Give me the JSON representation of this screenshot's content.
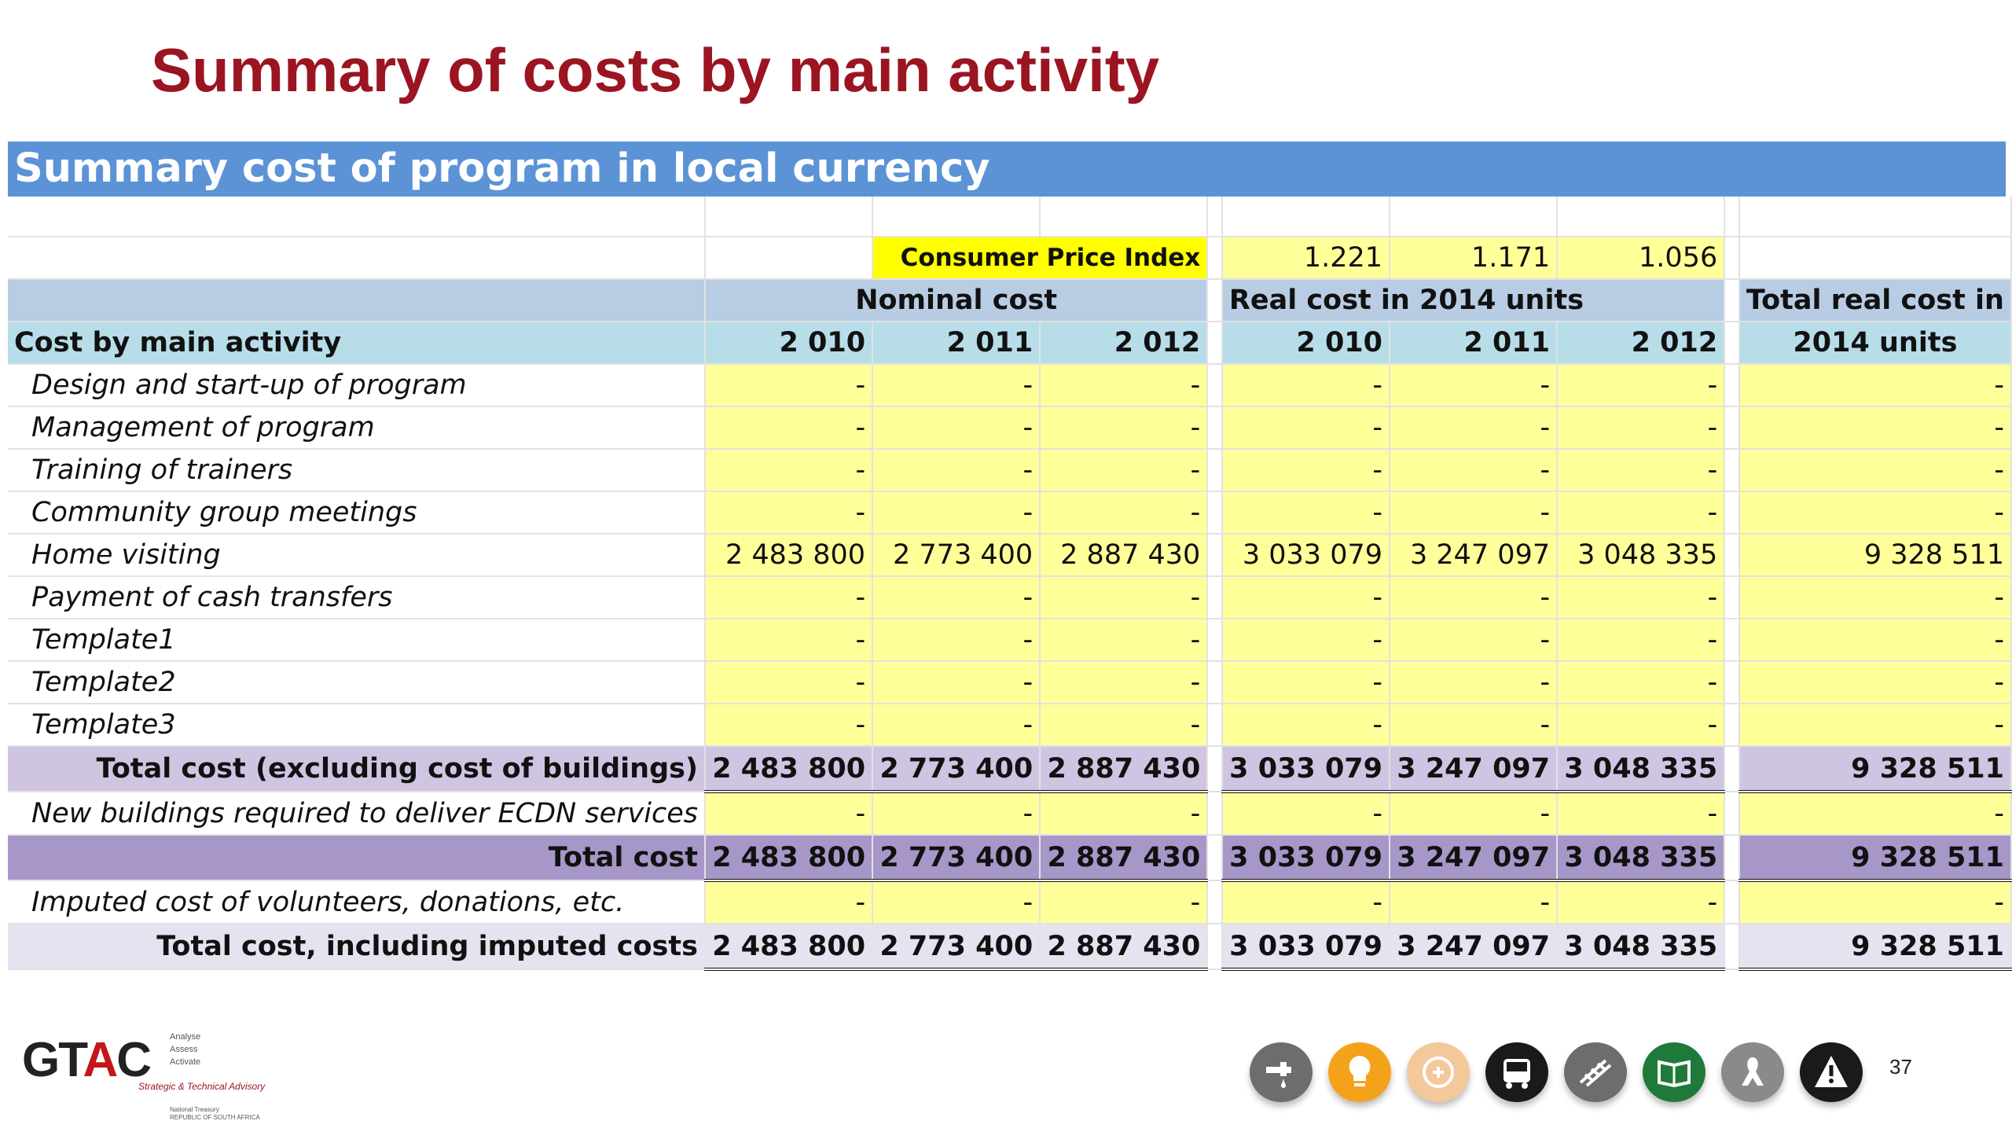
{
  "slide": {
    "title": "Summary of costs by main activity",
    "banner": "Summary cost of program in local currency",
    "page_number": "37"
  },
  "table": {
    "cpi_label": "Consumer Price Index",
    "cpi_values": [
      "1.221",
      "1.171",
      "1.056"
    ],
    "group_nominal": "Nominal cost",
    "group_real": "Real cost in 2014 units",
    "group_total_line1": "Total real cost in",
    "group_total_line2": "2014 units",
    "row_header": "Cost by main activity",
    "years_nominal": [
      "2 010",
      "2 011",
      "2 012"
    ],
    "years_real": [
      "2 010",
      "2 011",
      "2 012"
    ],
    "activities": [
      {
        "label": "Design and start-up of program",
        "nominal": [
          "-",
          "-",
          "-"
        ],
        "real": [
          "-",
          "-",
          "-"
        ],
        "total": "-"
      },
      {
        "label": "Management of program",
        "nominal": [
          "-",
          "-",
          "-"
        ],
        "real": [
          "-",
          "-",
          "-"
        ],
        "total": "-"
      },
      {
        "label": "Training of trainers",
        "nominal": [
          "-",
          "-",
          "-"
        ],
        "real": [
          "-",
          "-",
          "-"
        ],
        "total": "-"
      },
      {
        "label": "Community group meetings",
        "nominal": [
          "-",
          "-",
          "-"
        ],
        "real": [
          "-",
          "-",
          "-"
        ],
        "total": "-"
      },
      {
        "label": "Home visiting",
        "nominal": [
          "2 483 800",
          "2 773 400",
          "2 887 430"
        ],
        "real": [
          "3 033 079",
          "3 247 097",
          "3 048 335"
        ],
        "total": "9 328 511"
      },
      {
        "label": "Payment of cash transfers",
        "nominal": [
          "-",
          "-",
          "-"
        ],
        "real": [
          "-",
          "-",
          "-"
        ],
        "total": "-"
      },
      {
        "label": "Template1",
        "nominal": [
          "-",
          "-",
          "-"
        ],
        "real": [
          "-",
          "-",
          "-"
        ],
        "total": "-"
      },
      {
        "label": "Template2",
        "nominal": [
          "-",
          "-",
          "-"
        ],
        "real": [
          "-",
          "-",
          "-"
        ],
        "total": "-"
      },
      {
        "label": "Template3",
        "nominal": [
          "-",
          "-",
          "-"
        ],
        "real": [
          "-",
          "-",
          "-"
        ],
        "total": "-"
      }
    ],
    "total_excl": {
      "label": "Total cost (excluding cost of buildings)",
      "nominal": [
        "2 483 800",
        "2 773 400",
        "2 887 430"
      ],
      "real": [
        "3 033 079",
        "3 247 097",
        "3 048 335"
      ],
      "total": "9 328 511"
    },
    "buildings": {
      "label": "New buildings required to deliver ECDN services",
      "nominal": [
        "-",
        "-",
        "-"
      ],
      "real": [
        "-",
        "-",
        "-"
      ],
      "total": "-"
    },
    "total_cost": {
      "label": "Total cost",
      "nominal": [
        "2 483 800",
        "2 773 400",
        "2 887 430"
      ],
      "real": [
        "3 033 079",
        "3 247 097",
        "3 048 335"
      ],
      "total": "9 328 511"
    },
    "imputed": {
      "label": "Imputed cost of volunteers, donations, etc.",
      "nominal": [
        "-",
        "-",
        "-"
      ],
      "real": [
        "-",
        "-",
        "-"
      ],
      "total": "-"
    },
    "total_imputed": {
      "label": "Total cost, including imputed costs",
      "nominal": [
        "2 483 800",
        "2 773 400",
        "2 887 430"
      ],
      "real": [
        "3 033 079",
        "3 247 097",
        "3 048 335"
      ],
      "total": "9 328 511"
    }
  },
  "logo": {
    "name_left": "GT",
    "name_a": "A",
    "name_right": "C",
    "tag1": "Analyse",
    "tag2": "Assess",
    "tag3": "Activate",
    "subtitle": "Strategic & Technical Advisory",
    "org_line1": "National Treasury",
    "org_line2": "REPUBLIC OF SOUTH AFRICA"
  },
  "icons": [
    {
      "name": "water-tap-icon",
      "color": "#6d6d6d"
    },
    {
      "name": "lightbulb-icon",
      "color": "#f5a21b"
    },
    {
      "name": "health-icon",
      "color": "#f3c89a"
    },
    {
      "name": "bus-icon",
      "color": "#1a1a1a"
    },
    {
      "name": "rail-icon",
      "color": "#6d6d6d"
    },
    {
      "name": "book-icon",
      "color": "#1f7a3a"
    },
    {
      "name": "ribbon-icon",
      "color": "#8a8a8a"
    },
    {
      "name": "warning-icon",
      "color": "#1a1a1a"
    }
  ]
}
